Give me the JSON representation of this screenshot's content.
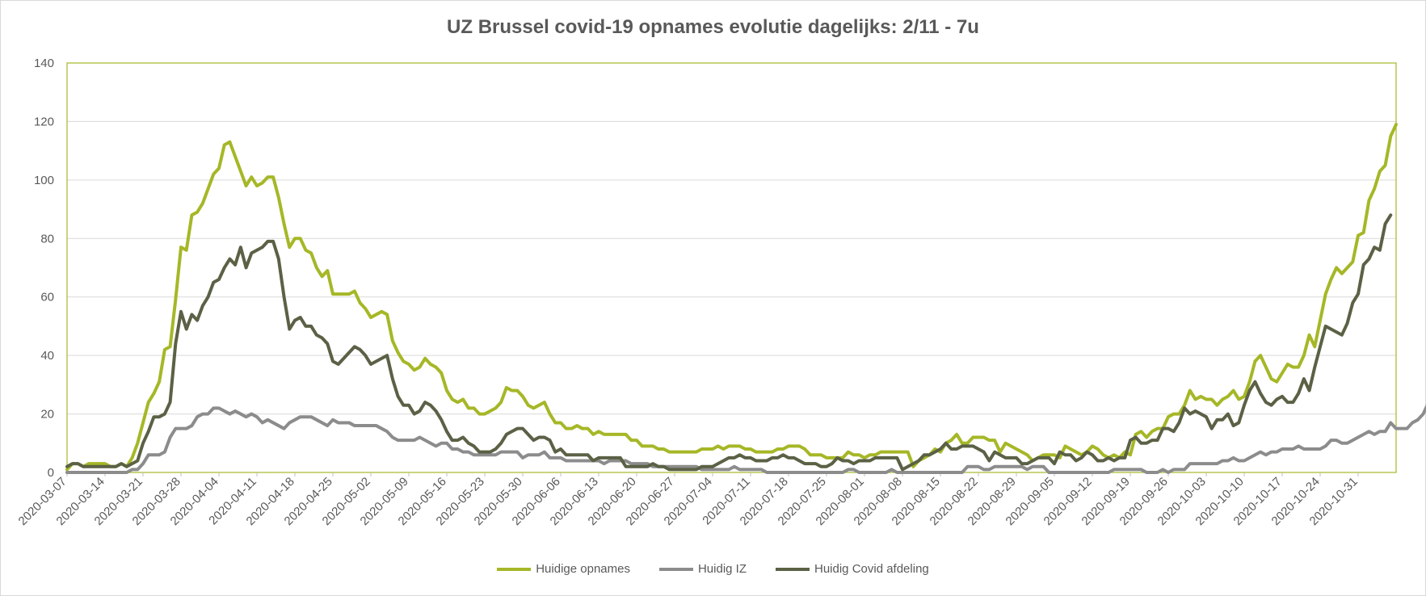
{
  "chart_data": {
    "type": "line",
    "title": "UZ Brussel covid-19 opnames evolutie dagelijks: 2/11 - 7u",
    "xlabel": "",
    "ylabel": "",
    "ylim": [
      0,
      140
    ],
    "yticks": [
      0,
      20,
      40,
      60,
      80,
      100,
      120,
      140
    ],
    "grid": true,
    "legend_position": "bottom",
    "x_start": "2020-03-07",
    "x_tick_labels": [
      "2020-03-07",
      "2020-03-14",
      "2020-03-21",
      "2020-03-28",
      "2020-04-04",
      "2020-04-11",
      "2020-04-18",
      "2020-04-25",
      "2020-05-02",
      "2020-05-09",
      "2020-05-16",
      "2020-05-23",
      "2020-05-30",
      "2020-06-06",
      "2020-06-13",
      "2020-06-20",
      "2020-06-27",
      "2020-07-04",
      "2020-07-11",
      "2020-07-18",
      "2020-07-25",
      "2020-08-01",
      "2020-08-08",
      "2020-08-15",
      "2020-08-22",
      "2020-08-29",
      "2020-09-05",
      "2020-09-12",
      "2020-09-19",
      "2020-09-26",
      "2020-10-03",
      "2020-10-10",
      "2020-10-17",
      "2020-10-24",
      "2020-10-31"
    ],
    "series": [
      {
        "name": "Huidige opnames",
        "color": "#a6b727",
        "values": [
          1,
          3,
          3,
          2,
          3,
          3,
          3,
          3,
          2,
          2,
          3,
          2,
          5,
          10,
          17,
          24,
          27,
          31,
          42,
          43,
          59,
          77,
          76,
          88,
          89,
          92,
          97,
          102,
          104,
          112,
          113,
          108,
          103,
          98,
          101,
          98,
          99,
          101,
          101,
          94,
          85,
          77,
          80,
          80,
          76,
          75,
          70,
          67,
          69,
          61,
          61,
          61,
          61,
          62,
          58,
          56,
          53,
          54,
          55,
          54,
          45,
          41,
          38,
          37,
          35,
          36,
          39,
          37,
          36,
          34,
          28,
          25,
          24,
          25,
          22,
          22,
          20,
          20,
          21,
          22,
          24,
          29,
          28,
          28,
          26,
          23,
          22,
          23,
          24,
          20,
          17,
          17,
          15,
          15,
          16,
          15,
          15,
          13,
          14,
          13,
          13,
          13,
          13,
          13,
          11,
          11,
          9,
          9,
          9,
          8,
          8,
          7,
          7,
          7,
          7,
          7,
          7,
          8,
          8,
          8,
          9,
          8,
          9,
          9,
          9,
          8,
          8,
          7,
          7,
          7,
          7,
          8,
          8,
          9,
          9,
          9,
          8,
          6,
          6,
          6,
          5,
          5,
          5,
          5,
          7,
          6,
          6,
          5,
          6,
          6,
          7,
          7,
          7,
          7,
          7,
          7,
          2,
          4,
          5,
          6,
          8,
          7,
          10,
          11,
          13,
          10,
          10,
          12,
          12,
          12,
          11,
          11,
          7,
          10,
          9,
          8,
          7,
          6,
          4,
          5,
          6,
          6,
          6,
          5,
          9,
          8,
          7,
          6,
          7,
          9,
          8,
          6,
          5,
          6,
          5,
          7,
          6,
          13,
          14,
          12,
          14,
          15,
          15,
          19,
          20,
          20,
          23,
          28,
          25,
          26,
          25,
          25,
          23,
          25,
          26,
          28,
          25,
          26,
          31,
          38,
          40,
          36,
          32,
          31,
          34,
          37,
          36,
          36,
          40,
          47,
          43,
          52,
          61,
          66,
          70,
          68,
          70,
          72,
          81,
          82,
          93,
          97,
          103,
          105,
          115,
          119
        ]
      },
      {
        "name": "Huidig IZ",
        "color": "#8c8c8c",
        "values": [
          0,
          0,
          0,
          0,
          0,
          0,
          0,
          0,
          0,
          0,
          0,
          0,
          1,
          1,
          3,
          6,
          6,
          6,
          7,
          12,
          15,
          15,
          15,
          16,
          19,
          20,
          20,
          22,
          22,
          21,
          20,
          21,
          20,
          19,
          20,
          19,
          17,
          18,
          17,
          16,
          15,
          17,
          18,
          19,
          19,
          19,
          18,
          17,
          16,
          18,
          17,
          17,
          17,
          16,
          16,
          16,
          16,
          16,
          15,
          14,
          12,
          11,
          11,
          11,
          11,
          12,
          11,
          10,
          9,
          10,
          10,
          8,
          8,
          7,
          7,
          6,
          6,
          6,
          6,
          6,
          7,
          7,
          7,
          7,
          5,
          6,
          6,
          6,
          7,
          5,
          5,
          5,
          4,
          4,
          4,
          4,
          4,
          4,
          4,
          3,
          4,
          4,
          4,
          4,
          3,
          3,
          3,
          3,
          2,
          2,
          2,
          2,
          2,
          2,
          2,
          2,
          2,
          1,
          1,
          1,
          1,
          1,
          1,
          2,
          1,
          1,
          1,
          1,
          1,
          0,
          0,
          0,
          0,
          0,
          0,
          0,
          0,
          0,
          0,
          0,
          0,
          0,
          0,
          0,
          1,
          1,
          0,
          0,
          0,
          0,
          0,
          0,
          1,
          0,
          0,
          0,
          0,
          0,
          0,
          0,
          0,
          0,
          0,
          0,
          0,
          0,
          2,
          2,
          2,
          1,
          1,
          2,
          2,
          2,
          2,
          2,
          2,
          1,
          2,
          2,
          2,
          0,
          0,
          0,
          0,
          0,
          0,
          0,
          0,
          0,
          0,
          0,
          0,
          1,
          1,
          1,
          1,
          1,
          1,
          0,
          0,
          0,
          1,
          0,
          1,
          1,
          1,
          3,
          3,
          3,
          3,
          3,
          3,
          4,
          4,
          5,
          4,
          4,
          5,
          6,
          7,
          6,
          7,
          7,
          8,
          8,
          8,
          9,
          8,
          8,
          8,
          8,
          9,
          11,
          11,
          10,
          10,
          11,
          12,
          13,
          14,
          13,
          14,
          14,
          17,
          15,
          15,
          15,
          17,
          18,
          20,
          24,
          24,
          25
        ]
      },
      {
        "name": "Huidig Covid afdeling",
        "color": "#5a6145",
        "values": [
          2,
          3,
          3,
          2,
          2,
          2,
          2,
          2,
          2,
          2,
          3,
          2,
          3,
          4,
          10,
          14,
          19,
          19,
          20,
          24,
          44,
          55,
          49,
          54,
          52,
          57,
          60,
          65,
          66,
          70,
          73,
          71,
          77,
          70,
          75,
          76,
          77,
          79,
          79,
          73,
          60,
          49,
          52,
          53,
          50,
          50,
          47,
          46,
          44,
          38,
          37,
          39,
          41,
          43,
          42,
          40,
          37,
          38,
          39,
          40,
          32,
          26,
          23,
          23,
          20,
          21,
          24,
          23,
          21,
          18,
          14,
          11,
          11,
          12,
          10,
          9,
          7,
          7,
          7,
          8,
          10,
          13,
          14,
          15,
          15,
          13,
          11,
          12,
          12,
          11,
          7,
          8,
          6,
          6,
          6,
          6,
          6,
          4,
          5,
          5,
          5,
          5,
          5,
          2,
          2,
          2,
          2,
          2,
          3,
          2,
          2,
          1,
          1,
          1,
          1,
          1,
          1,
          2,
          2,
          2,
          3,
          4,
          5,
          5,
          6,
          5,
          5,
          4,
          4,
          4,
          5,
          5,
          6,
          5,
          5,
          4,
          3,
          3,
          3,
          2,
          2,
          3,
          5,
          4,
          4,
          3,
          4,
          4,
          4,
          5,
          5,
          5,
          5,
          5,
          1,
          2,
          3,
          4,
          6,
          6,
          7,
          8,
          10,
          8,
          8,
          9,
          9,
          9,
          8,
          7,
          4,
          7,
          6,
          5,
          5,
          5,
          3,
          3,
          4,
          5,
          5,
          5,
          3,
          7,
          6,
          6,
          4,
          5,
          7,
          6,
          4,
          4,
          5,
          4,
          5,
          5,
          11,
          12,
          10,
          10,
          11,
          11,
          15,
          15,
          14,
          17,
          22,
          20,
          21,
          20,
          19,
          15,
          18,
          18,
          20,
          16,
          17,
          23,
          28,
          31,
          27,
          24,
          23,
          25,
          26,
          24,
          24,
          27,
          32,
          28,
          36,
          43,
          50,
          49,
          48,
          47,
          51,
          58,
          61,
          71,
          73,
          77,
          76,
          85,
          88
        ]
      }
    ]
  }
}
